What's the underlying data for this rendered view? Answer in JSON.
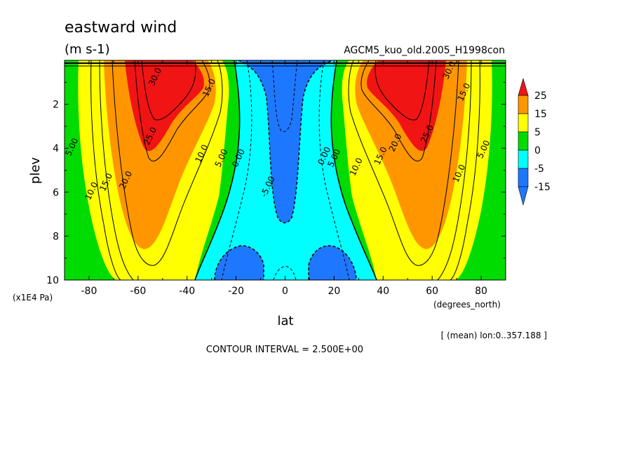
{
  "chart_data": {
    "type": "contour",
    "title": "eastward wind",
    "units": "(m s-1)",
    "experiment": "AGCM5_kuo_old.2005_H1998con",
    "xlabel": "lat",
    "xunits": "(degrees_north)",
    "ylabel": "plev",
    "yunits": "(x1E4 Pa)",
    "footnote": "[ (mean) lon:0..357.188 ]",
    "contour_interval_text": "CONTOUR INTERVAL = 2.500E+00",
    "xlim": [
      -90,
      90
    ],
    "ylim": [
      10,
      0
    ],
    "x_ticks": [
      -80,
      -60,
      -40,
      -20,
      0,
      20,
      40,
      60,
      80
    ],
    "x_tick_labels": [
      "-80",
      "-60",
      "-40",
      "-20",
      "0",
      "20",
      "40",
      "60",
      "80"
    ],
    "y_ticks": [
      2,
      4,
      6,
      8,
      10
    ],
    "y_tick_labels": [
      "2",
      "4",
      "6",
      "8",
      "10"
    ],
    "colorbar": {
      "levels": [
        -15,
        -5,
        0,
        5,
        15,
        25
      ],
      "labels": [
        "25",
        "15",
        "5",
        "0",
        "-5",
        "-15"
      ],
      "colors": {
        "below_-15": "#1e78ff",
        "-15_to_-5": "#1e78ff",
        "-5_to_0": "#00ffff",
        "0_to_5": "#00dc00",
        "5_to_15": "#ffff00",
        "15_to_25": "#ff9600",
        "above_25": "#f01414"
      }
    },
    "contour_labels": [
      {
        "text": "30.0",
        "lat": -52,
        "plev": 0.8
      },
      {
        "text": "15.0",
        "lat": -30,
        "plev": 1.3
      },
      {
        "text": "25.0",
        "lat": -54,
        "plev": 3.5
      },
      {
        "text": "5.00",
        "lat": -86,
        "plev": 4.0
      },
      {
        "text": "10.0",
        "lat": -33,
        "plev": 4.3
      },
      {
        "text": "5.00",
        "lat": -25,
        "plev": 4.5
      },
      {
        "text": "0.00",
        "lat": -18,
        "plev": 4.5
      },
      {
        "text": "20.0",
        "lat": -64,
        "plev": 5.5
      },
      {
        "text": "15.0",
        "lat": -72,
        "plev": 5.6
      },
      {
        "text": "10.0",
        "lat": -78,
        "plev": 6.0
      },
      {
        "text": "-5.00",
        "lat": -6,
        "plev": 5.8
      },
      {
        "text": "0.00",
        "lat": 17,
        "plev": 4.4
      },
      {
        "text": "5.00",
        "lat": 21,
        "plev": 4.5
      },
      {
        "text": "10.0",
        "lat": 30,
        "plev": 4.9
      },
      {
        "text": "15.0",
        "lat": 40,
        "plev": 4.4
      },
      {
        "text": "20.0",
        "lat": 46,
        "plev": 3.8
      },
      {
        "text": "25.0",
        "lat": 59,
        "plev": 3.4
      },
      {
        "text": "30.0",
        "lat": 68,
        "plev": 0.5
      },
      {
        "text": "15.0",
        "lat": 74,
        "plev": 1.5
      },
      {
        "text": "10.0",
        "lat": 72,
        "plev": 5.2
      },
      {
        "text": "5.00",
        "lat": 82,
        "plev": 4.1
      }
    ]
  }
}
